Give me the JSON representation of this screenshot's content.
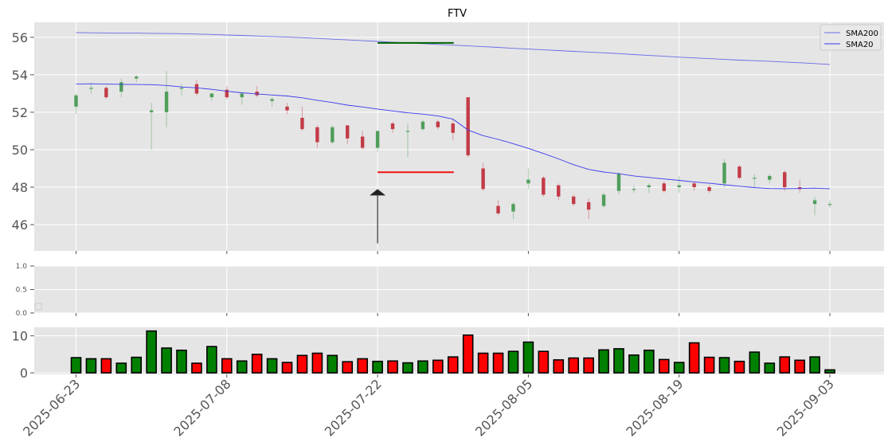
{
  "chart_data": {
    "type": "candlestick",
    "title": "FTV",
    "dates": [
      "2025-06-23",
      "2025-06-24",
      "2025-06-25",
      "2025-06-26",
      "2025-06-27",
      "2025-06-30",
      "2025-07-01",
      "2025-07-02",
      "2025-07-03",
      "2025-07-07",
      "2025-07-08",
      "2025-07-09",
      "2025-07-10",
      "2025-07-11",
      "2025-07-14",
      "2025-07-15",
      "2025-07-16",
      "2025-07-17",
      "2025-07-18",
      "2025-07-21",
      "2025-07-22",
      "2025-07-23",
      "2025-07-24",
      "2025-07-25",
      "2025-07-28",
      "2025-07-29",
      "2025-07-30",
      "2025-07-31",
      "2025-08-01",
      "2025-08-04",
      "2025-08-05",
      "2025-08-06",
      "2025-08-07",
      "2025-08-08",
      "2025-08-11",
      "2025-08-12",
      "2025-08-13",
      "2025-08-14",
      "2025-08-15",
      "2025-08-18",
      "2025-08-19",
      "2025-08-20",
      "2025-08-21",
      "2025-08-22",
      "2025-08-25",
      "2025-08-26",
      "2025-08-27",
      "2025-08-28",
      "2025-08-29",
      "2025-09-02",
      "2025-09-03"
    ],
    "x_tick_labels": [
      "2025-06-23",
      "2025-07-08",
      "2025-07-22",
      "2025-08-05",
      "2025-08-19",
      "2025-09-03"
    ],
    "x_tick_index": [
      0,
      10,
      20,
      30,
      40,
      50
    ],
    "ohlc": [
      [
        52.3,
        53.0,
        51.9,
        52.9
      ],
      [
        53.3,
        53.5,
        53.0,
        53.3
      ],
      [
        53.3,
        53.4,
        52.7,
        52.8
      ],
      [
        53.1,
        53.8,
        52.8,
        53.6
      ],
      [
        53.8,
        54.0,
        53.6,
        53.9
      ],
      [
        52.0,
        52.5,
        50.0,
        52.1
      ],
      [
        52.0,
        54.2,
        51.2,
        53.1
      ],
      [
        53.3,
        53.5,
        52.9,
        53.3
      ],
      [
        53.5,
        53.7,
        52.9,
        53.0
      ],
      [
        52.8,
        53.0,
        52.6,
        53.0
      ],
      [
        53.2,
        53.4,
        52.7,
        52.8
      ],
      [
        52.8,
        53.0,
        52.4,
        53.0
      ],
      [
        53.1,
        53.4,
        52.8,
        52.9
      ],
      [
        52.6,
        52.8,
        52.3,
        52.7
      ],
      [
        52.3,
        52.5,
        51.9,
        52.1
      ],
      [
        51.7,
        52.3,
        51.0,
        51.1
      ],
      [
        51.2,
        51.3,
        50.1,
        50.4
      ],
      [
        50.4,
        51.3,
        50.3,
        51.2
      ],
      [
        51.3,
        51.3,
        50.3,
        50.6
      ],
      [
        50.7,
        51.0,
        50.0,
        50.1
      ],
      [
        50.1,
        51.0,
        49.9,
        51.0
      ],
      [
        51.4,
        51.5,
        50.9,
        51.1
      ],
      [
        51.0,
        51.4,
        49.6,
        51.0
      ],
      [
        51.1,
        51.6,
        51.0,
        51.5
      ],
      [
        51.5,
        51.6,
        51.1,
        51.2
      ],
      [
        51.4,
        51.6,
        50.5,
        50.9
      ],
      [
        52.8,
        52.8,
        49.6,
        49.7
      ],
      [
        49.0,
        49.3,
        47.8,
        47.9
      ],
      [
        47.0,
        47.3,
        46.5,
        46.6
      ],
      [
        46.7,
        47.2,
        46.3,
        47.1
      ],
      [
        48.2,
        49.0,
        47.9,
        48.4
      ],
      [
        48.5,
        48.6,
        47.5,
        47.6
      ],
      [
        48.1,
        48.2,
        47.3,
        47.5
      ],
      [
        47.5,
        47.6,
        47.0,
        47.1
      ],
      [
        47.2,
        47.4,
        46.3,
        46.8
      ],
      [
        47.0,
        47.7,
        46.9,
        47.6
      ],
      [
        47.8,
        48.8,
        47.6,
        48.7
      ],
      [
        47.9,
        48.1,
        47.7,
        47.9
      ],
      [
        48.0,
        48.2,
        47.7,
        48.1
      ],
      [
        48.2,
        48.3,
        47.7,
        47.8
      ],
      [
        48.0,
        48.6,
        47.7,
        48.1
      ],
      [
        48.2,
        48.3,
        47.8,
        48.0
      ],
      [
        48.0,
        48.1,
        47.7,
        47.8
      ],
      [
        48.2,
        49.5,
        48.0,
        49.3
      ],
      [
        49.1,
        49.2,
        48.4,
        48.5
      ],
      [
        48.5,
        48.7,
        48.0,
        48.5
      ],
      [
        48.4,
        48.7,
        48.2,
        48.6
      ],
      [
        48.8,
        48.9,
        47.8,
        48.0
      ],
      [
        48.0,
        48.4,
        47.7,
        47.9
      ],
      [
        47.1,
        47.5,
        46.5,
        47.3
      ],
      [
        47.1,
        47.3,
        46.9,
        47.1
      ]
    ],
    "sma20": [
      53.5,
      53.52,
      53.5,
      53.49,
      53.48,
      53.47,
      53.43,
      53.35,
      53.3,
      53.22,
      53.12,
      53.04,
      52.98,
      52.92,
      52.87,
      52.77,
      52.64,
      52.52,
      52.38,
      52.28,
      52.17,
      52.07,
      51.97,
      51.9,
      51.8,
      51.63,
      51.05,
      50.75,
      50.55,
      50.32,
      50.07,
      49.8,
      49.51,
      49.2,
      48.95,
      48.81,
      48.72,
      48.6,
      48.52,
      48.44,
      48.36,
      48.28,
      48.21,
      48.13,
      48.05,
      47.98,
      47.93,
      47.92,
      47.93,
      47.95,
      47.91
    ],
    "sma200": [
      56.25,
      56.24,
      56.23,
      56.22,
      56.22,
      56.21,
      56.2,
      56.19,
      56.17,
      56.15,
      56.12,
      56.1,
      56.07,
      56.04,
      56.01,
      55.98,
      55.94,
      55.9,
      55.86,
      55.82,
      55.78,
      55.74,
      55.7,
      55.66,
      55.62,
      55.58,
      55.54,
      55.5,
      55.46,
      55.41,
      55.37,
      55.33,
      55.29,
      55.25,
      55.21,
      55.17,
      55.13,
      55.08,
      55.03,
      54.99,
      54.94,
      54.9,
      54.86,
      54.82,
      54.78,
      54.75,
      54.72,
      54.68,
      54.64,
      54.6,
      54.55
    ],
    "volume": [
      4.1,
      3.8,
      3.8,
      2.6,
      4.2,
      11.3,
      6.7,
      6.1,
      2.6,
      7.1,
      3.8,
      3.2,
      5.0,
      3.8,
      2.8,
      4.7,
      5.3,
      4.7,
      3.0,
      3.8,
      3.1,
      3.2,
      2.7,
      3.2,
      3.4,
      4.3,
      10.2,
      5.3,
      5.3,
      5.8,
      8.3,
      5.8,
      3.5,
      4.0,
      4.0,
      6.2,
      6.5,
      4.8,
      6.1,
      3.6,
      2.8,
      8.1,
      4.2,
      4.1,
      3.1,
      5.6,
      2.6,
      4.3,
      3.4,
      4.3,
      0.8
    ],
    "annotations": {
      "green_line": {
        "value": 55.7,
        "from_index": 20,
        "to_index": 25
      },
      "red_line": {
        "value": 48.8,
        "from_index": 20,
        "to_index": 25
      },
      "arrow": {
        "index": 20,
        "from_value": 45.0,
        "to_value": 47.9
      }
    },
    "price_ylim": [
      44.6,
      56.8
    ],
    "price_yticks": [
      46,
      48,
      50,
      52,
      54,
      56
    ],
    "mid_ylim": [
      0,
      1.0
    ],
    "mid_yticks": [
      "0.0",
      "0.5",
      "1.0"
    ],
    "volume_ylim": [
      -0.4,
      12.3
    ],
    "volume_yticks": [
      0,
      10
    ],
    "legend": [
      {
        "name": "SMA200",
        "color": "#6a6ae8"
      },
      {
        "name": "SMA20",
        "color": "#3a3aee"
      }
    ],
    "legend_position": "top-right",
    "colors": {
      "up": "#4f9e5a",
      "down": "#c23b47",
      "vol_up": "#008000",
      "vol_down": "#ff0000",
      "sma200": "#6a6ae8",
      "sma20": "#3a3aee",
      "panel_bg": "#e5e5e5",
      "grid": "#ffffff",
      "green_line": "#006400",
      "red_line": "#ee1111"
    },
    "grid": true
  }
}
